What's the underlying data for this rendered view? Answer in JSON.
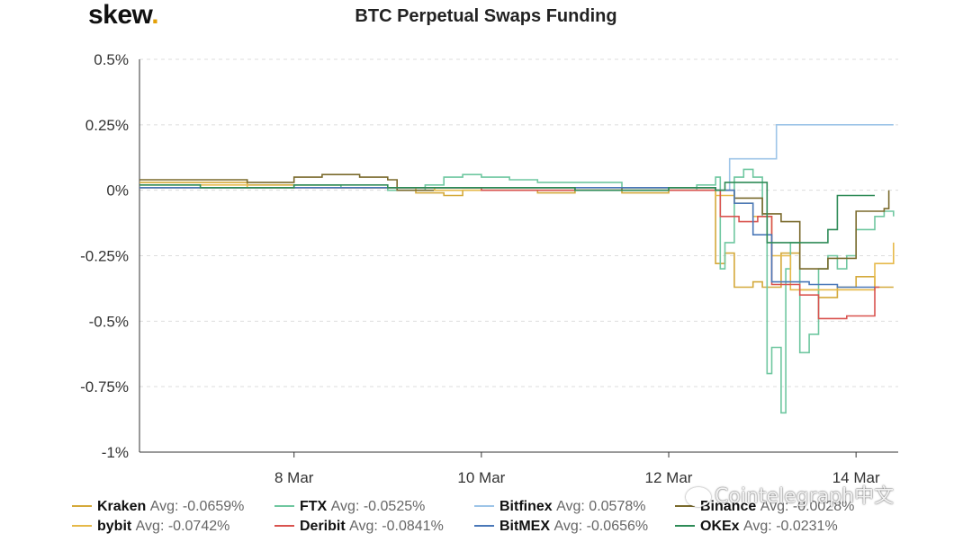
{
  "brand": {
    "logo_text": "skew",
    "logo_dot": ".",
    "accent": "#e3a008"
  },
  "watermark": {
    "text": "Cointelegraph中文",
    "icon": "wechat-icon"
  },
  "chart_data": {
    "type": "line",
    "title": "BTC Perpetual Swaps Funding",
    "xlabel": "",
    "ylabel": "",
    "x_ticks": [
      "8 Mar",
      "10 Mar",
      "12 Mar",
      "14 Mar"
    ],
    "x_range_days": [
      6.35,
      14.45
    ],
    "y_ticks": [
      "0.5%",
      "0.25%",
      "0%",
      "-0.25%",
      "-0.5%",
      "-0.75%",
      "-1%"
    ],
    "y_tick_values": [
      0.5,
      0.25,
      0,
      -0.25,
      -0.5,
      -0.75,
      -1
    ],
    "ylim": [
      -1,
      0.5
    ],
    "grid": "horizontal-dashed",
    "legend_position": "bottom",
    "series": [
      {
        "name": "Kraken",
        "avg": "Avg: -0.0659%",
        "color": "#d4a93a",
        "points": [
          [
            6.35,
            0.03
          ],
          [
            7.0,
            0.03
          ],
          [
            7.5,
            0.02
          ],
          [
            8.0,
            0.02
          ],
          [
            8.5,
            0.01
          ],
          [
            9.0,
            0.01
          ],
          [
            9.3,
            -0.01
          ],
          [
            9.6,
            -0.02
          ],
          [
            9.8,
            0.0
          ],
          [
            10.2,
            0.0
          ],
          [
            10.6,
            -0.01
          ],
          [
            11.0,
            0.0
          ],
          [
            11.5,
            -0.01
          ],
          [
            12.0,
            0.0
          ],
          [
            12.2,
            0.0
          ],
          [
            12.4,
            0.0
          ],
          [
            12.5,
            -0.28
          ],
          [
            12.6,
            -0.24
          ],
          [
            12.7,
            -0.37
          ],
          [
            12.9,
            -0.35
          ],
          [
            13.0,
            -0.37
          ],
          [
            13.2,
            -0.24
          ],
          [
            13.4,
            -0.38
          ],
          [
            13.6,
            -0.41
          ],
          [
            13.8,
            -0.37
          ],
          [
            14.0,
            -0.33
          ],
          [
            14.2,
            -0.37
          ],
          [
            14.4,
            -0.37
          ]
        ]
      },
      {
        "name": "FTX",
        "avg": "Avg: -0.0525%",
        "color": "#6fc7a0",
        "points": [
          [
            6.35,
            0.01
          ],
          [
            7.0,
            0.01
          ],
          [
            8.0,
            0.02
          ],
          [
            8.5,
            0.01
          ],
          [
            9.0,
            0.0
          ],
          [
            9.4,
            0.02
          ],
          [
            9.6,
            0.05
          ],
          [
            9.8,
            0.06
          ],
          [
            10.0,
            0.05
          ],
          [
            10.3,
            0.04
          ],
          [
            10.6,
            0.03
          ],
          [
            11.0,
            0.03
          ],
          [
            11.5,
            0.01
          ],
          [
            12.0,
            0.0
          ],
          [
            12.3,
            0.02
          ],
          [
            12.5,
            0.05
          ],
          [
            12.55,
            -0.3
          ],
          [
            12.6,
            -0.2
          ],
          [
            12.7,
            0.05
          ],
          [
            12.8,
            0.08
          ],
          [
            12.9,
            0.05
          ],
          [
            13.0,
            -0.1
          ],
          [
            13.05,
            -0.7
          ],
          [
            13.1,
            -0.6
          ],
          [
            13.2,
            -0.85
          ],
          [
            13.25,
            -0.3
          ],
          [
            13.3,
            -0.2
          ],
          [
            13.4,
            -0.62
          ],
          [
            13.5,
            -0.55
          ],
          [
            13.6,
            -0.3
          ],
          [
            13.7,
            -0.25
          ],
          [
            13.8,
            -0.3
          ],
          [
            13.9,
            -0.25
          ],
          [
            14.0,
            -0.15
          ],
          [
            14.2,
            -0.1
          ],
          [
            14.3,
            -0.08
          ],
          [
            14.4,
            -0.1
          ]
        ]
      },
      {
        "name": "Bitfinex",
        "avg": "Avg: 0.0578%",
        "color": "#9ec5e8",
        "points": [
          [
            6.35,
            0.01
          ],
          [
            8.0,
            0.01
          ],
          [
            10.0,
            0.0
          ],
          [
            12.0,
            0.0
          ],
          [
            12.5,
            0.0
          ],
          [
            12.65,
            0.12
          ],
          [
            13.0,
            0.12
          ],
          [
            13.1,
            0.12
          ],
          [
            13.15,
            0.25
          ],
          [
            13.5,
            0.25
          ],
          [
            14.0,
            0.25
          ],
          [
            14.4,
            0.25
          ]
        ]
      },
      {
        "name": "Binance",
        "avg": "Avg: -0.0028%",
        "color": "#7a6a2c",
        "points": [
          [
            6.35,
            0.04
          ],
          [
            7.0,
            0.04
          ],
          [
            7.5,
            0.03
          ],
          [
            8.0,
            0.05
          ],
          [
            8.3,
            0.06
          ],
          [
            8.7,
            0.05
          ],
          [
            9.0,
            0.04
          ],
          [
            9.1,
            0.0
          ],
          [
            9.5,
            0.01
          ],
          [
            10.0,
            0.01
          ],
          [
            10.5,
            0.01
          ],
          [
            11.0,
            0.0
          ],
          [
            11.5,
            0.01
          ],
          [
            12.0,
            0.01
          ],
          [
            12.5,
            0.0
          ],
          [
            12.7,
            -0.03
          ],
          [
            12.9,
            -0.03
          ],
          [
            13.0,
            -0.09
          ],
          [
            13.2,
            -0.12
          ],
          [
            13.4,
            -0.3
          ],
          [
            13.7,
            -0.26
          ],
          [
            14.0,
            -0.08
          ],
          [
            14.2,
            -0.08
          ],
          [
            14.3,
            -0.07
          ],
          [
            14.35,
            0.0
          ]
        ]
      },
      {
        "name": "bybit",
        "avg": "Avg: -0.0742%",
        "color": "#e6b94a",
        "points": [
          [
            6.35,
            0.02
          ],
          [
            7.0,
            0.02
          ],
          [
            7.5,
            0.01
          ],
          [
            8.0,
            0.01
          ],
          [
            9.0,
            0.01
          ],
          [
            9.5,
            0.0
          ],
          [
            10.0,
            0.0
          ],
          [
            11.0,
            0.0
          ],
          [
            12.0,
            0.0
          ],
          [
            12.5,
            -0.02
          ],
          [
            12.6,
            -0.02
          ],
          [
            12.7,
            -0.05
          ],
          [
            12.9,
            -0.1
          ],
          [
            13.1,
            -0.25
          ],
          [
            13.3,
            -0.38
          ],
          [
            13.5,
            -0.38
          ],
          [
            13.8,
            -0.38
          ],
          [
            14.1,
            -0.38
          ],
          [
            14.2,
            -0.28
          ],
          [
            14.4,
            -0.2
          ]
        ]
      },
      {
        "name": "Deribit",
        "avg": "Avg: -0.0841%",
        "color": "#d9534f",
        "points": [
          [
            6.35,
            0.01
          ],
          [
            8.0,
            0.01
          ],
          [
            10.0,
            0.0
          ],
          [
            12.0,
            0.0
          ],
          [
            12.5,
            0.0
          ],
          [
            12.55,
            -0.1
          ],
          [
            12.75,
            -0.12
          ],
          [
            12.95,
            -0.1
          ],
          [
            13.1,
            -0.36
          ],
          [
            13.4,
            -0.4
          ],
          [
            13.6,
            -0.49
          ],
          [
            13.9,
            -0.48
          ],
          [
            14.1,
            -0.48
          ],
          [
            14.2,
            -0.37
          ],
          [
            14.25,
            -0.37
          ]
        ]
      },
      {
        "name": "BitMEX",
        "avg": "Avg: -0.0656%",
        "color": "#4a78b8",
        "points": [
          [
            6.35,
            0.01
          ],
          [
            8.0,
            0.01
          ],
          [
            10.0,
            0.01
          ],
          [
            12.0,
            0.01
          ],
          [
            12.5,
            0.0
          ],
          [
            12.7,
            -0.05
          ],
          [
            12.9,
            -0.17
          ],
          [
            13.1,
            -0.35
          ],
          [
            13.5,
            -0.36
          ],
          [
            13.8,
            -0.37
          ],
          [
            14.0,
            -0.37
          ],
          [
            14.2,
            -0.37
          ]
        ]
      },
      {
        "name": "OKEx",
        "avg": "Avg: -0.0231%",
        "color": "#2e8b57",
        "points": [
          [
            6.35,
            0.02
          ],
          [
            7.0,
            0.01
          ],
          [
            8.0,
            0.02
          ],
          [
            9.0,
            0.01
          ],
          [
            10.0,
            0.01
          ],
          [
            11.0,
            0.0
          ],
          [
            12.0,
            0.01
          ],
          [
            12.5,
            0.0
          ],
          [
            12.6,
            0.03
          ],
          [
            13.0,
            0.03
          ],
          [
            13.05,
            -0.2
          ],
          [
            13.3,
            -0.2
          ],
          [
            13.6,
            -0.2
          ],
          [
            13.7,
            -0.15
          ],
          [
            13.8,
            -0.02
          ],
          [
            14.0,
            -0.02
          ],
          [
            14.2,
            -0.02
          ]
        ]
      }
    ]
  }
}
